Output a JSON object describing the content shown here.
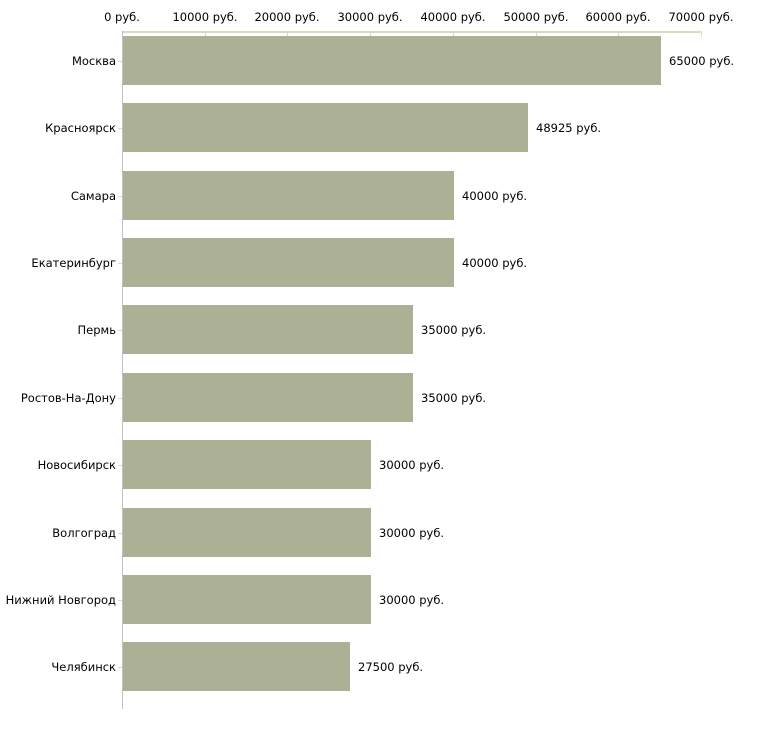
{
  "chart_data": {
    "type": "bar",
    "orientation": "horizontal",
    "title": "",
    "xlabel": "",
    "ylabel": "",
    "unit": "руб.",
    "categories": [
      "Москва",
      "Красноярск",
      "Самара",
      "Екатеринбург",
      "Пермь",
      "Ростов-На-Дону",
      "Новосибирск",
      "Волгоград",
      "Нижний Новгород",
      "Челябинск"
    ],
    "values": [
      65000,
      48925,
      40000,
      40000,
      35000,
      35000,
      30000,
      30000,
      30000,
      27500
    ],
    "value_labels": [
      "65000 руб.",
      "48925 руб.",
      "40000 руб.",
      "40000 руб.",
      "35000 руб.",
      "35000 руб.",
      "30000 руб.",
      "30000 руб.",
      "30000 руб.",
      "27500 руб."
    ],
    "x_axis": {
      "position": "top",
      "ticks": [
        0,
        10000,
        20000,
        30000,
        40000,
        50000,
        60000,
        70000
      ],
      "tick_labels": [
        "0 руб.",
        "10000 руб.",
        "20000 руб.",
        "30000 руб.",
        "40000 руб.",
        "50000 руб.",
        "60000 руб.",
        "70000 руб."
      ]
    },
    "xlim": [
      0,
      70000
    ],
    "grid": false,
    "legend": false,
    "colors": {
      "bar": "#acb196",
      "axis": "#d9dcc1",
      "baseline": "#c0c0c0",
      "text": "#000000",
      "background": "#ffffff"
    }
  }
}
